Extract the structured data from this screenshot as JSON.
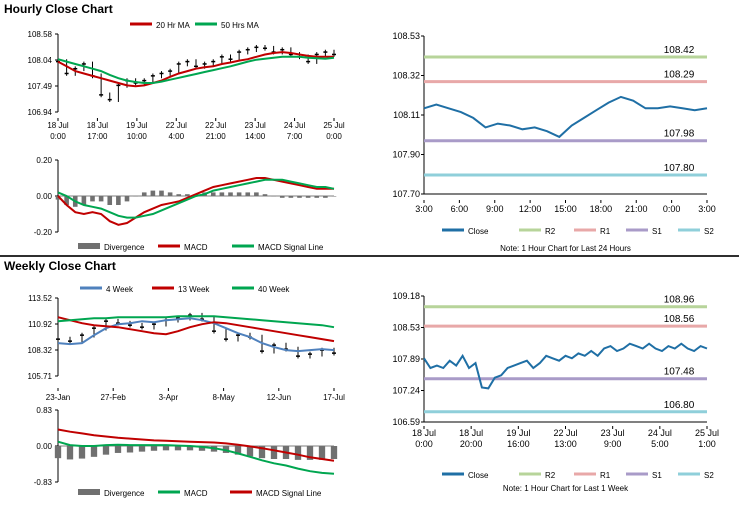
{
  "sections": {
    "hourly_title": "Hourly Close Chart",
    "weekly_title": "Weekly Close Chart"
  },
  "chart_data": [
    {
      "id": "hourly_price",
      "type": "line",
      "legend": [
        "20 Hr MA",
        "50 Hrs MA"
      ],
      "colors": {
        "ma20": "#c00000",
        "ma50": "#00a650",
        "price": "#000000"
      },
      "yticks": [
        "108.58",
        "108.04",
        "107.49",
        "106.94"
      ],
      "ylim": [
        106.94,
        108.58
      ],
      "xticks": [
        [
          "18 Jul",
          "0:00"
        ],
        [
          "18 Jul",
          "17:00"
        ],
        [
          "19 Jul",
          "10:00"
        ],
        [
          "22 Jul",
          "4:00"
        ],
        [
          "22 Jul",
          "21:00"
        ],
        [
          "23 Jul",
          "14:00"
        ],
        [
          "24 Jul",
          "7:00"
        ],
        [
          "25 Jul",
          "0:00"
        ]
      ],
      "series": [
        {
          "name": "20 Hr MA",
          "values": [
            108.0,
            107.9,
            107.8,
            107.75,
            107.7,
            107.65,
            107.6,
            107.55,
            107.5,
            107.48,
            107.5,
            107.55,
            107.6,
            107.68,
            107.75,
            107.8,
            107.85,
            107.88,
            107.9,
            107.95,
            107.98,
            108.02,
            108.05,
            108.1,
            108.15,
            108.18,
            108.2,
            108.18,
            108.15,
            108.12,
            108.1,
            108.1,
            108.1
          ]
        },
        {
          "name": "50 Hrs MA",
          "values": [
            108.05,
            108.0,
            107.95,
            107.9,
            107.85,
            107.8,
            107.72,
            107.65,
            107.6,
            107.57,
            107.55,
            107.55,
            107.58,
            107.62,
            107.66,
            107.7,
            107.74,
            107.78,
            107.82,
            107.86,
            107.9,
            107.95,
            108.0,
            108.04,
            108.06,
            108.08,
            108.1,
            108.1,
            108.1,
            108.08,
            108.07,
            108.06,
            108.08
          ]
        },
        {
          "name": "Close",
          "values": [
            108.0,
            107.75,
            107.85,
            107.95,
            107.7,
            107.3,
            107.2,
            107.5,
            107.6,
            107.55,
            107.6,
            107.7,
            107.75,
            107.8,
            107.95,
            108.0,
            107.9,
            107.95,
            108.0,
            108.1,
            108.05,
            108.2,
            108.25,
            108.3,
            108.28,
            108.2,
            108.25,
            108.15,
            108.1,
            108.0,
            108.15,
            108.2,
            108.15
          ]
        }
      ]
    },
    {
      "id": "hourly_macd",
      "type": "line",
      "legend": [
        "Divergence",
        "MACD",
        "MACD Signal Line"
      ],
      "colors": {
        "div": "#707070",
        "macd": "#c00000",
        "signal": "#00a650"
      },
      "yticks": [
        "0.20",
        "0.00",
        "-0.20"
      ],
      "ylim": [
        -0.2,
        0.2
      ],
      "series": [
        {
          "name": "MACD",
          "values": [
            0.0,
            -0.05,
            -0.09,
            -0.1,
            -0.09,
            -0.1,
            -0.14,
            -0.16,
            -0.15,
            -0.12,
            -0.09,
            -0.07,
            -0.05,
            -0.04,
            -0.03,
            -0.01,
            0.01,
            0.03,
            0.05,
            0.06,
            0.07,
            0.08,
            0.09,
            0.1,
            0.1,
            0.09,
            0.08,
            0.07,
            0.06,
            0.05,
            0.04,
            0.04,
            0.04
          ]
        },
        {
          "name": "MACD Signal Line",
          "values": [
            0.02,
            0.0,
            -0.03,
            -0.05,
            -0.06,
            -0.07,
            -0.09,
            -0.11,
            -0.12,
            -0.12,
            -0.11,
            -0.1,
            -0.08,
            -0.06,
            -0.04,
            -0.02,
            0.0,
            0.01,
            0.03,
            0.04,
            0.05,
            0.06,
            0.07,
            0.08,
            0.09,
            0.09,
            0.09,
            0.08,
            0.07,
            0.06,
            0.05,
            0.05,
            0.04
          ]
        },
        {
          "name": "Divergence",
          "values": [
            -0.02,
            -0.05,
            -0.06,
            -0.05,
            -0.03,
            -0.03,
            -0.05,
            -0.05,
            -0.03,
            0.0,
            0.02,
            0.03,
            0.03,
            0.02,
            0.01,
            0.01,
            0.01,
            0.02,
            0.02,
            0.02,
            0.02,
            0.02,
            0.02,
            0.02,
            0.01,
            0.0,
            -0.01,
            -0.01,
            -0.01,
            -0.01,
            -0.01,
            -0.01,
            0.0
          ]
        }
      ]
    },
    {
      "id": "hourly_levels",
      "type": "line",
      "note": "Note: 1 Hour Chart for Last 24 Hours",
      "yticks": [
        "108.53",
        "108.32",
        "108.11",
        "107.90",
        "107.70"
      ],
      "ylim": [
        107.7,
        108.53
      ],
      "xticks": [
        "3:00",
        "6:00",
        "9:00",
        "12:00",
        "15:00",
        "18:00",
        "21:00",
        "0:00",
        "3:00"
      ],
      "levels": [
        {
          "name": "R2",
          "value": 108.42,
          "label": "108.42",
          "color": "#b7d49a"
        },
        {
          "name": "R1",
          "value": 108.29,
          "label": "108.29",
          "color": "#e8a8a8"
        },
        {
          "name": "S1",
          "value": 107.98,
          "label": "107.98",
          "color": "#a99bc8"
        },
        {
          "name": "S2",
          "value": 107.8,
          "label": "107.80",
          "color": "#8fcfda"
        }
      ],
      "legend": [
        "Close",
        "R2",
        "R1",
        "S1",
        "S2"
      ],
      "series": [
        {
          "name": "Close",
          "color": "#1f6fa5",
          "values": [
            108.15,
            108.17,
            108.15,
            108.13,
            108.1,
            108.05,
            108.07,
            108.06,
            108.04,
            108.05,
            108.03,
            108.0,
            108.06,
            108.1,
            108.14,
            108.18,
            108.21,
            108.19,
            108.15,
            108.15,
            108.16,
            108.15,
            108.14,
            108.15
          ]
        }
      ]
    },
    {
      "id": "weekly_price",
      "type": "line",
      "legend": [
        "4 Week",
        "13 Week",
        "40 Week"
      ],
      "colors": {
        "w4": "#4f81bd",
        "w13": "#c00000",
        "w40": "#00a650",
        "price": "#000000"
      },
      "yticks": [
        "113.52",
        "110.92",
        "108.32",
        "105.71"
      ],
      "ylim": [
        105.71,
        113.52
      ],
      "xticks": [
        "23-Jan",
        "27-Feb",
        "3-Apr",
        "8-May",
        "12-Jun",
        "17-Jul"
      ],
      "series": [
        {
          "name": "4 Week",
          "values": [
            109.0,
            108.9,
            109.0,
            109.8,
            110.5,
            110.9,
            111.0,
            111.2,
            111.1,
            111.3,
            111.4,
            111.5,
            111.3,
            111.0,
            110.5,
            110.0,
            109.6,
            109.0,
            108.6,
            108.3,
            108.2,
            108.3,
            108.4,
            108.3
          ]
        },
        {
          "name": "13 Week",
          "values": [
            111.6,
            111.3,
            111.0,
            110.8,
            110.7,
            110.6,
            110.4,
            110.2,
            110.0,
            109.9,
            110.2,
            110.6,
            110.9,
            111.1,
            111.0,
            110.8,
            110.6,
            110.4,
            110.2,
            110.0,
            109.8,
            109.6,
            109.4,
            109.2
          ]
        },
        {
          "name": "40 Week",
          "values": [
            111.2,
            111.3,
            111.4,
            111.5,
            111.5,
            111.6,
            111.6,
            111.6,
            111.6,
            111.6,
            111.7,
            111.7,
            111.7,
            111.7,
            111.6,
            111.5,
            111.4,
            111.3,
            111.2,
            111.1,
            111.0,
            110.9,
            110.8,
            110.6
          ]
        },
        {
          "name": "Close",
          "values": [
            109.4,
            109.2,
            109.8,
            110.5,
            111.2,
            111.0,
            110.8,
            110.6,
            110.9,
            111.3,
            111.5,
            111.8,
            111.4,
            110.2,
            109.4,
            109.8,
            109.6,
            108.2,
            108.8,
            108.4,
            107.7,
            107.9,
            108.3,
            108.0
          ]
        }
      ]
    },
    {
      "id": "weekly_macd",
      "type": "line",
      "legend": [
        "Divergence",
        "MACD",
        "MACD Signal Line"
      ],
      "colors": {
        "div": "#707070",
        "macd": "#00a650",
        "signal": "#c00000"
      },
      "yticks": [
        "0.83",
        "0.00",
        "-0.83"
      ],
      "ylim": [
        -0.83,
        0.83
      ],
      "series": [
        {
          "name": "MACD",
          "values": [
            0.1,
            0.02,
            0.0,
            0.0,
            0.02,
            0.03,
            0.02,
            0.02,
            0.02,
            0.02,
            0.01,
            0.0,
            -0.02,
            -0.05,
            -0.1,
            -0.17,
            -0.25,
            -0.33,
            -0.4,
            -0.45,
            -0.52,
            -0.58,
            -0.62,
            -0.64
          ]
        },
        {
          "name": "MACD Signal Line",
          "values": [
            0.38,
            0.33,
            0.29,
            0.25,
            0.22,
            0.19,
            0.17,
            0.15,
            0.13,
            0.12,
            0.11,
            0.1,
            0.09,
            0.08,
            0.06,
            0.03,
            -0.01,
            -0.05,
            -0.1,
            -0.15,
            -0.2,
            -0.26,
            -0.3,
            -0.34
          ]
        },
        {
          "name": "Divergence",
          "values": [
            -0.28,
            -0.31,
            -0.29,
            -0.25,
            -0.2,
            -0.16,
            -0.15,
            -0.13,
            -0.11,
            -0.1,
            -0.1,
            -0.1,
            -0.11,
            -0.13,
            -0.16,
            -0.2,
            -0.24,
            -0.28,
            -0.3,
            -0.3,
            -0.32,
            -0.32,
            -0.32,
            -0.3
          ]
        }
      ]
    },
    {
      "id": "weekly_levels",
      "type": "line",
      "note": "Note: 1 Hour Chart for Last 1 Week",
      "yticks": [
        "109.18",
        "108.53",
        "107.89",
        "107.24",
        "106.59"
      ],
      "ylim": [
        106.59,
        109.18
      ],
      "xticks": [
        [
          "18 Jul",
          "0:00"
        ],
        [
          "18 Jul",
          "20:00"
        ],
        [
          "19 Jul",
          "16:00"
        ],
        [
          "22 Jul",
          "13:00"
        ],
        [
          "23 Jul",
          "9:00"
        ],
        [
          "24 Jul",
          "5:00"
        ],
        [
          "25 Jul",
          "1:00"
        ]
      ],
      "levels": [
        {
          "name": "R2",
          "value": 108.96,
          "label": "108.96",
          "color": "#b7d49a"
        },
        {
          "name": "R1",
          "value": 108.56,
          "label": "108.56",
          "color": "#e8a8a8"
        },
        {
          "name": "S1",
          "value": 107.48,
          "label": "107.48",
          "color": "#a99bc8"
        },
        {
          "name": "S2",
          "value": 106.8,
          "label": "106.80",
          "color": "#8fcfda"
        }
      ],
      "legend": [
        "Close",
        "R2",
        "R1",
        "S1",
        "S2"
      ],
      "series": [
        {
          "name": "Close",
          "color": "#1f6fa5",
          "values": [
            107.9,
            107.7,
            107.75,
            107.7,
            107.85,
            107.75,
            107.95,
            107.7,
            107.8,
            107.3,
            107.28,
            107.5,
            107.55,
            107.7,
            107.75,
            107.8,
            107.85,
            107.7,
            107.8,
            107.95,
            107.9,
            107.85,
            107.95,
            107.9,
            108.0,
            107.95,
            108.05,
            107.95,
            108.1,
            108.15,
            108.05,
            108.1,
            108.2,
            108.15,
            108.1,
            108.2,
            108.1,
            108.05,
            108.15,
            108.1,
            108.2,
            108.1,
            108.05,
            108.15,
            108.1
          ]
        }
      ]
    }
  ]
}
